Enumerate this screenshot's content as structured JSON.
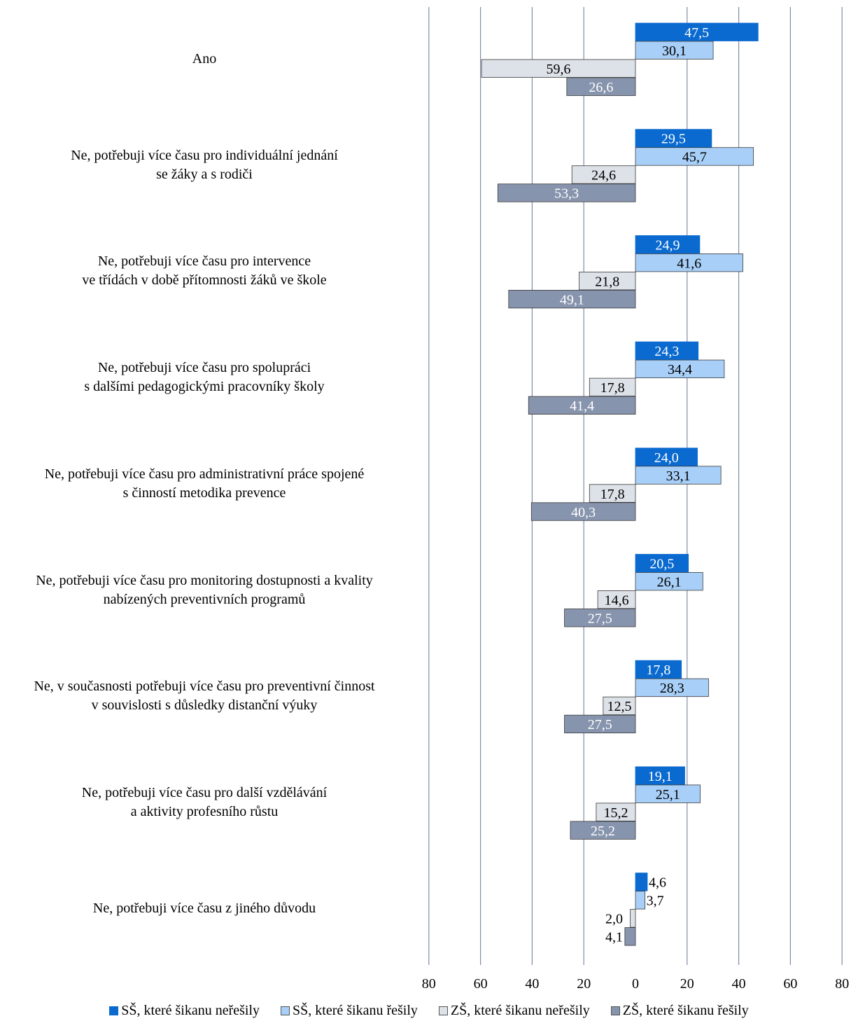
{
  "chart_data": {
    "type": "bar",
    "orientation": "horizontal",
    "categories": [
      [
        "Ano"
      ],
      [
        "Ne, potřebuji více času pro individuální jednání",
        "se žáky a s rodiči"
      ],
      [
        "Ne, potřebuji více času pro intervence",
        "ve třídách v době přítomnosti žáků ve škole"
      ],
      [
        "Ne, potřebuji více času pro spolupráci",
        "s dalšími pedagogickými pracovníky školy"
      ],
      [
        "Ne, potřebuji více času pro administrativní práce spojené",
        "s činností metodika prevence"
      ],
      [
        "Ne, potřebuji více času pro monitoring dostupnosti a kvality",
        "nabízených preventivních programů"
      ],
      [
        "Ne, v současnosti potřebuji více času pro preventivní činnost",
        "v souvislosti s důsledky distanční výuky"
      ],
      [
        "Ne, potřebuji více času pro další vzdělávání",
        "a aktivity profesního růstu"
      ],
      [
        "Ne, potřebuji více času z jiného důvodu"
      ]
    ],
    "series": [
      {
        "name": "SŠ, které šikanu neřešily",
        "side": "right",
        "color": "#0A6ACF",
        "values": [
          47.5,
          29.5,
          24.9,
          24.3,
          24.0,
          20.5,
          17.8,
          19.1,
          4.6
        ],
        "labels": [
          "47,5",
          "29,5",
          "24,9",
          "24,3",
          "24,0",
          "20,5",
          "17,8",
          "19,1",
          "4,6"
        ]
      },
      {
        "name": "SŠ, které šikanu řešily",
        "side": "right",
        "color": "#A8CFF8",
        "values": [
          30.1,
          45.7,
          41.6,
          34.4,
          33.1,
          26.1,
          28.3,
          25.1,
          3.7
        ],
        "labels": [
          "30,1",
          "45,7",
          "41,6",
          "34,4",
          "33,1",
          "26,1",
          "28,3",
          "25,1",
          "3,7"
        ]
      },
      {
        "name": "ZŠ, které šikanu neřešily",
        "side": "left",
        "color": "#DDE1E8",
        "values": [
          59.6,
          24.6,
          21.8,
          17.8,
          17.8,
          14.6,
          12.5,
          15.2,
          2.0
        ],
        "labels": [
          "59,6",
          "24,6",
          "21,8",
          "17,8",
          "17,8",
          "14,6",
          "12,5",
          "15,2",
          "2,0"
        ]
      },
      {
        "name": "ZŠ, které šikanu řešily",
        "side": "left",
        "color": "#8794AD",
        "values": [
          26.6,
          53.3,
          49.1,
          41.4,
          40.3,
          27.5,
          27.5,
          25.2,
          4.1
        ],
        "labels": [
          "26,6",
          "53,3",
          "49,1",
          "41,4",
          "40,3",
          "27,5",
          "27,5",
          "25,2",
          "4,1"
        ]
      }
    ],
    "x_ticks": [
      "80",
      "60",
      "40",
      "20",
      "0",
      "20",
      "40",
      "60",
      "80"
    ],
    "xlim": [
      -80,
      80
    ],
    "grid": true,
    "legend_position": "bottom"
  }
}
